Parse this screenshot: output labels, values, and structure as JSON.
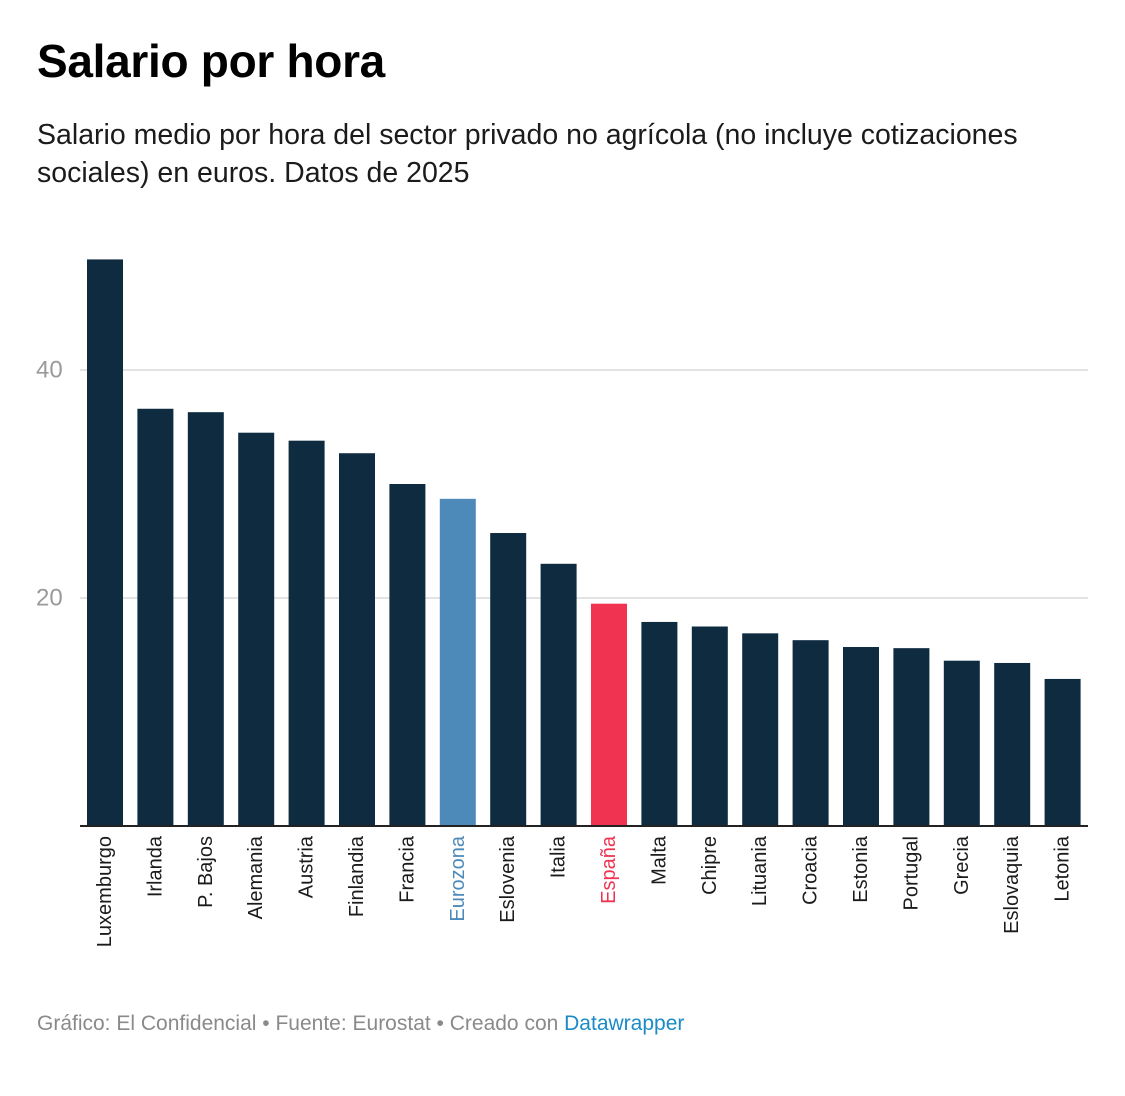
{
  "title": "Salario por hora",
  "subtitle": "Salario medio por hora del sector privado no agrícola (no incluye cotizaciones sociales) en euros. Datos de 2025",
  "footer": {
    "text": "Gráfico: El Confidencial • Fuente: Eurostat • Creado con ",
    "link": "Datawrapper"
  },
  "colors": {
    "default": "#0e2b40",
    "eurozona": "#4e8ab9",
    "espana": "#f03350",
    "grid": "#e3e3e3",
    "axis": "#222222",
    "tick_label": "#9a9a9a",
    "category_label": "#1b1b1b"
  },
  "chart_data": {
    "type": "bar",
    "title": "Salario por hora",
    "xlabel": "",
    "ylabel": "",
    "ylim": [
      0,
      50
    ],
    "yticks": [
      20,
      40
    ],
    "grid": true,
    "categories": [
      "Luxemburgo",
      "Irlanda",
      "P. Bajos",
      "Alemania",
      "Austria",
      "Finlandia",
      "Francia",
      "Eurozona",
      "Eslovenia",
      "Italia",
      "España",
      "Malta",
      "Chipre",
      "Lituania",
      "Croacia",
      "Estonia",
      "Portugal",
      "Grecia",
      "Eslovaquia",
      "Letonia"
    ],
    "values": [
      49.7,
      36.6,
      36.3,
      34.5,
      33.8,
      32.7,
      30.0,
      28.7,
      25.7,
      23.0,
      19.5,
      17.9,
      17.5,
      16.9,
      16.3,
      15.7,
      15.6,
      14.5,
      14.3,
      12.9
    ],
    "highlights": {
      "Eurozona": "eurozona",
      "España": "espana"
    }
  }
}
